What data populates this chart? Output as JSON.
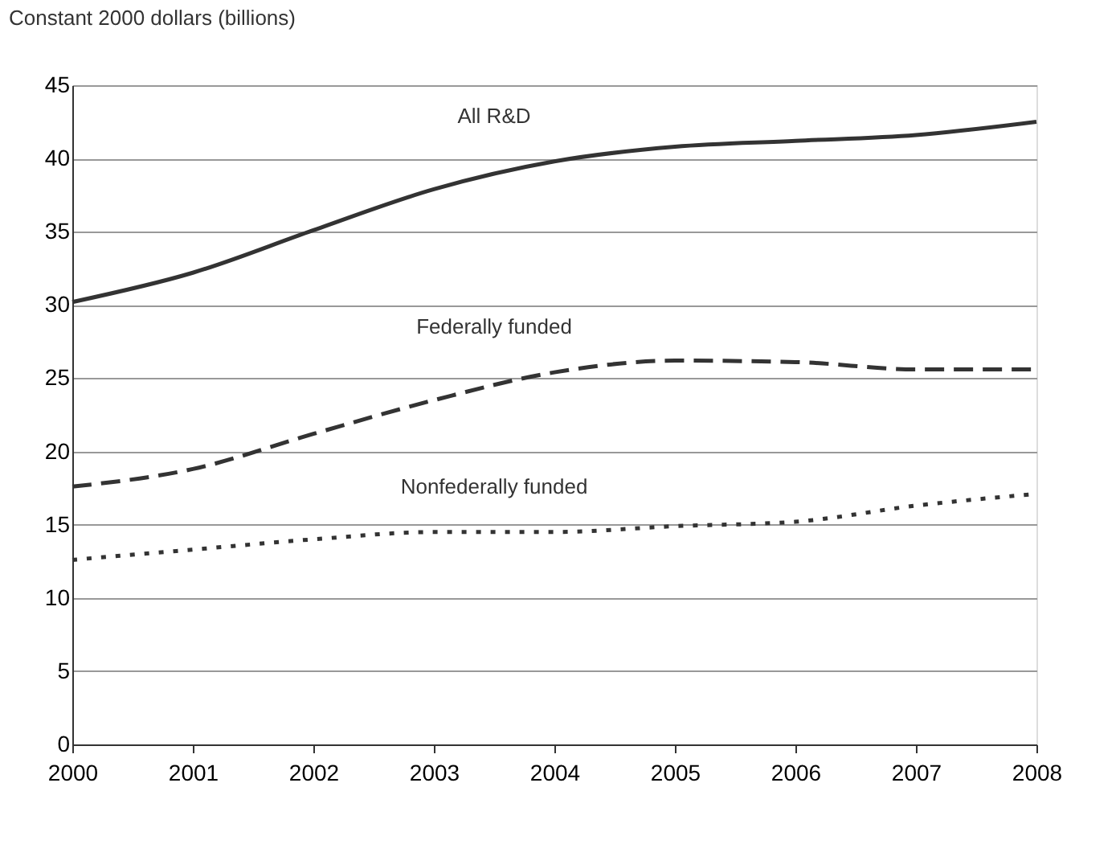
{
  "chart_data": {
    "type": "line",
    "ylabel": "Constant 2000 dollars (billions)",
    "x": [
      2000,
      2001,
      2002,
      2003,
      2004,
      2005,
      2006,
      2007,
      2008
    ],
    "series": [
      {
        "name": "All R&D",
        "color": "#333333",
        "line_style": "solid",
        "values": [
          30.2,
          32.2,
          35.1,
          37.9,
          39.8,
          40.8,
          41.2,
          41.6,
          42.5
        ]
      },
      {
        "name": "Federally funded",
        "color": "#333333",
        "line_style": "dashed",
        "values": [
          17.6,
          18.8,
          21.2,
          23.5,
          25.4,
          26.2,
          26.1,
          25.6,
          25.6
        ]
      },
      {
        "name": "Nonfederally funded",
        "color": "#333333",
        "line_style": "dotted",
        "values": [
          12.6,
          13.3,
          14.0,
          14.5,
          14.5,
          14.9,
          15.2,
          16.3,
          17.1
        ]
      }
    ],
    "xlim": [
      2000,
      2008
    ],
    "xticks": [
      2000,
      2001,
      2002,
      2003,
      2004,
      2005,
      2006,
      2007,
      2008
    ],
    "ylim": [
      0,
      45
    ],
    "yticks": [
      0,
      5,
      10,
      15,
      20,
      25,
      30,
      35,
      40,
      45
    ],
    "grid": "y",
    "marker": "none"
  }
}
